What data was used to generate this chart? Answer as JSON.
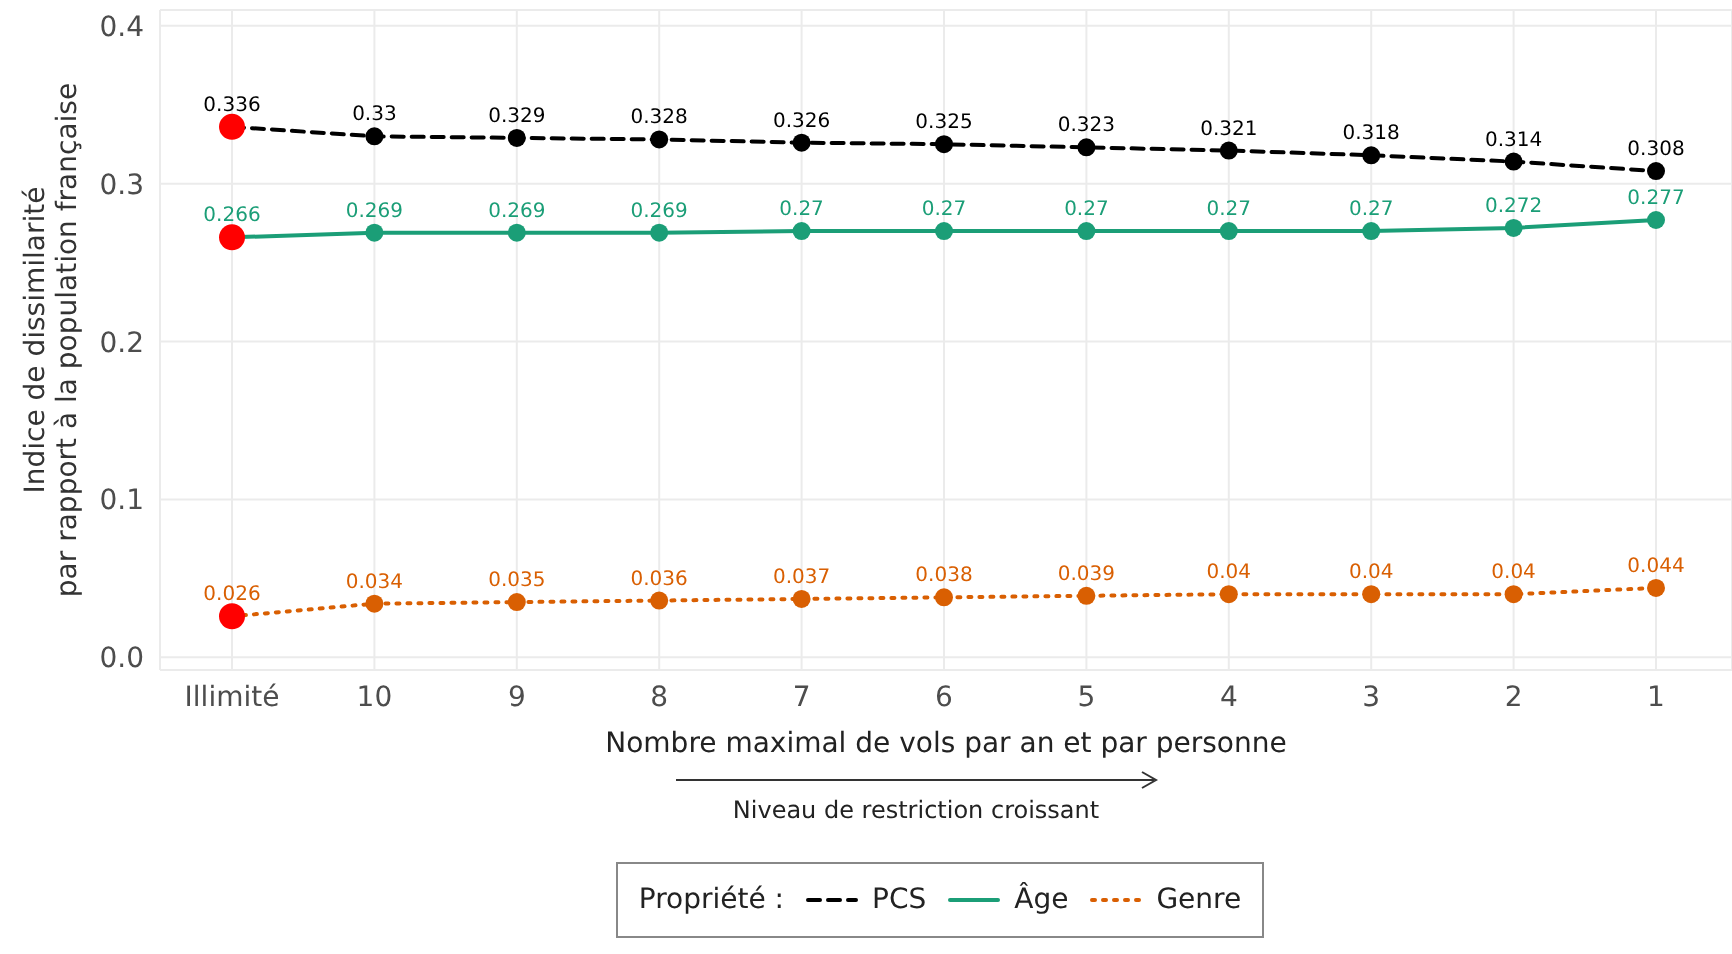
{
  "chart_data": {
    "type": "line",
    "xlabel": "Nombre maximal de vols par an et par personne",
    "ylabel": "Indice de dissimilarité\npar rapport à la population française",
    "legend_title": "Propriété :",
    "legend": "bottom",
    "grid": true,
    "marker": "circle",
    "data_labels": true,
    "categories": [
      "Illimité",
      "10",
      "9",
      "8",
      "7",
      "6",
      "5",
      "4",
      "3",
      "2",
      "1"
    ],
    "ylim": [
      -0.008,
      0.41
    ],
    "yticks": [
      {
        "value": 0,
        "label": "0.0"
      },
      0.1,
      0.2,
      0.3,
      0.4
    ],
    "series": [
      {
        "name": "PCS",
        "color": "#000000",
        "line_style": "dashed",
        "colors": [
          "#ff0000",
          "#000000",
          "#000000",
          "#000000",
          "#000000",
          "#000000",
          "#000000",
          "#000000",
          "#000000",
          "#000000",
          "#000000"
        ],
        "values": [
          0.336,
          0.33,
          0.329,
          0.328,
          0.326,
          0.325,
          0.323,
          0.321,
          0.318,
          0.314,
          0.308
        ]
      },
      {
        "name": "Âge",
        "color": "#1b9e77",
        "line_style": "solid",
        "colors": [
          "#ff0000",
          "#1b9e77",
          "#1b9e77",
          "#1b9e77",
          "#1b9e77",
          "#1b9e77",
          "#1b9e77",
          "#1b9e77",
          "#1b9e77",
          "#1b9e77",
          "#1b9e77"
        ],
        "values": [
          0.266,
          0.269,
          0.269,
          0.269,
          0.27,
          0.27,
          0.27,
          0.27,
          0.27,
          0.272,
          0.277
        ]
      },
      {
        "name": "Genre",
        "color": "#d95f02",
        "line_style": "dotted",
        "colors": [
          "#ff0000",
          "#d95f02",
          "#d95f02",
          "#d95f02",
          "#d95f02",
          "#d95f02",
          "#d95f02",
          "#d95f02",
          "#d95f02",
          "#d95f02",
          "#d95f02"
        ],
        "values": [
          0.026,
          0.034,
          0.035,
          0.036,
          0.037,
          0.038,
          0.039,
          0.04,
          0.04,
          0.04,
          0.044
        ]
      }
    ],
    "annotations": [
      "Niveau de restriction croissant"
    ]
  }
}
